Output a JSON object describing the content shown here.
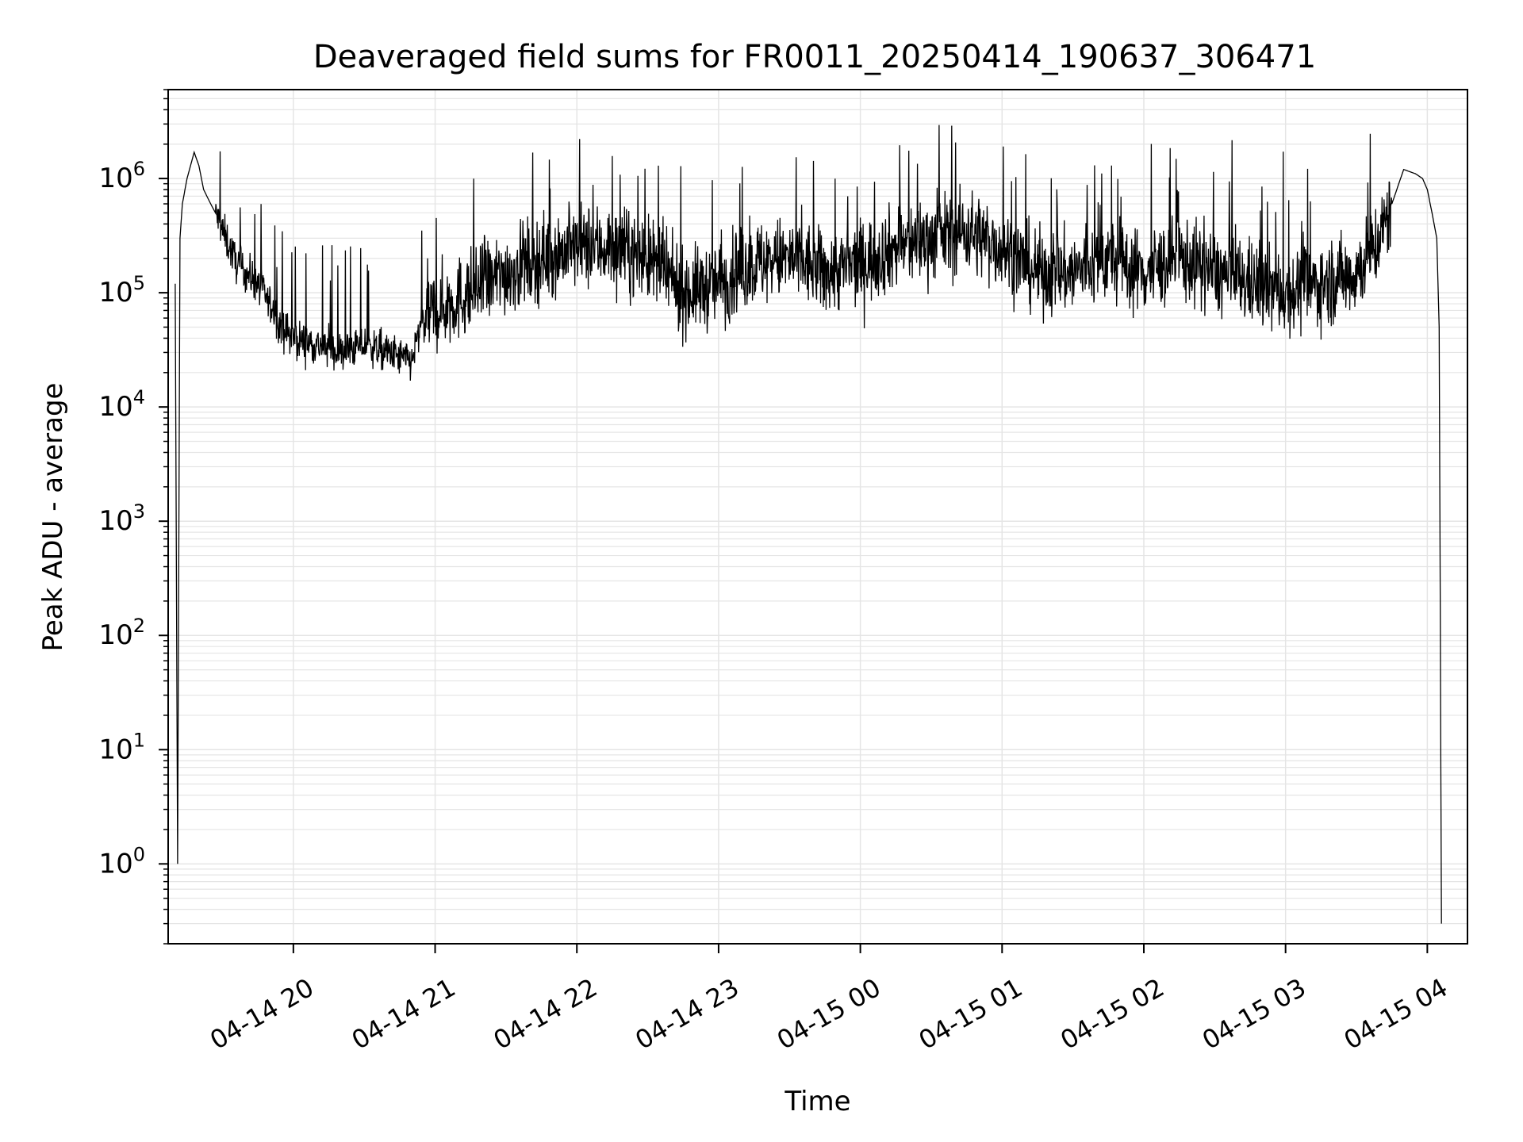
{
  "chart_data": {
    "type": "line",
    "title": "Deaveraged field sums for FR0011_20250414_190637_306471",
    "xlabel": "Time",
    "ylabel": "Peak ADU - average",
    "yscale": "log",
    "ylim": [
      0.2,
      6000000
    ],
    "xlim": [
      "2025-04-14 19:07",
      "2025-04-15 04:17"
    ],
    "grid": true,
    "line_color": "#000000",
    "grid_color": "#e5e5e5",
    "x_ticks": [
      {
        "value": "2025-04-14 20:00",
        "label": "04-14 20"
      },
      {
        "value": "2025-04-14 21:00",
        "label": "04-14 21"
      },
      {
        "value": "2025-04-14 22:00",
        "label": "04-14 22"
      },
      {
        "value": "2025-04-14 23:00",
        "label": "04-14 23"
      },
      {
        "value": "2025-04-15 00:00",
        "label": "04-15 00"
      },
      {
        "value": "2025-04-15 01:00",
        "label": "04-15 01"
      },
      {
        "value": "2025-04-15 02:00",
        "label": "04-15 02"
      },
      {
        "value": "2025-04-15 03:00",
        "label": "04-15 03"
      },
      {
        "value": "2025-04-15 04:00",
        "label": "04-15 04"
      }
    ],
    "y_ticks": [
      {
        "value": 1,
        "base": "10",
        "exp": "0"
      },
      {
        "value": 10,
        "base": "10",
        "exp": "1"
      },
      {
        "value": 100,
        "base": "10",
        "exp": "2"
      },
      {
        "value": 1000,
        "base": "10",
        "exp": "3"
      },
      {
        "value": 10000,
        "base": "10",
        "exp": "4"
      },
      {
        "value": 100000,
        "base": "10",
        "exp": "5"
      },
      {
        "value": 1000000,
        "base": "10",
        "exp": "6"
      }
    ],
    "series": [
      {
        "x": [
          "2025-04-14 19:10",
          "2025-04-14 19:11",
          "2025-04-14 19:12",
          "2025-04-14 19:13",
          "2025-04-14 19:15",
          "2025-04-14 19:18",
          "2025-04-14 19:20",
          "2025-04-14 19:22",
          "2025-04-14 19:25",
          "2025-04-14 19:27",
          "2025-04-14 19:30",
          "2025-04-14 19:33",
          "2025-04-14 19:36",
          "2025-04-14 19:40",
          "2025-04-14 19:45",
          "2025-04-14 19:50",
          "2025-04-14 19:55",
          "2025-04-14 20:00",
          "2025-04-14 20:10",
          "2025-04-14 20:20",
          "2025-04-14 20:30",
          "2025-04-14 20:40",
          "2025-04-14 20:50",
          "2025-04-14 20:55",
          "2025-04-14 21:00",
          "2025-04-14 21:15",
          "2025-04-14 21:30",
          "2025-04-14 21:45",
          "2025-04-14 22:00",
          "2025-04-14 22:15",
          "2025-04-14 22:30",
          "2025-04-14 22:45",
          "2025-04-14 23:00",
          "2025-04-14 23:15",
          "2025-04-14 23:30",
          "2025-04-14 23:45",
          "2025-04-15 00:00",
          "2025-04-15 00:15",
          "2025-04-15 00:30",
          "2025-04-15 00:45",
          "2025-04-15 01:00",
          "2025-04-15 01:15",
          "2025-04-15 01:30",
          "2025-04-15 01:45",
          "2025-04-15 02:00",
          "2025-04-15 02:15",
          "2025-04-15 02:30",
          "2025-04-15 02:45",
          "2025-04-15 03:00",
          "2025-04-15 03:15",
          "2025-04-15 03:30",
          "2025-04-15 03:40",
          "2025-04-15 03:45",
          "2025-04-15 03:50",
          "2025-04-15 03:55",
          "2025-04-15 03:58",
          "2025-04-15 04:00",
          "2025-04-15 04:02",
          "2025-04-15 04:04",
          "2025-04-15 04:05",
          "2025-04-15 04:06"
        ],
        "values": [
          120000,
          1,
          300000,
          600000,
          1000000,
          1700000,
          1300000,
          800000,
          600000,
          500000,
          350000,
          250000,
          180000,
          150000,
          120000,
          80000,
          50000,
          40000,
          35000,
          30000,
          35000,
          30000,
          25000,
          60000,
          70000,
          100000,
          150000,
          200000,
          250000,
          250000,
          200000,
          100000,
          120000,
          180000,
          200000,
          150000,
          180000,
          250000,
          300000,
          350000,
          250000,
          150000,
          150000,
          200000,
          150000,
          200000,
          150000,
          120000,
          100000,
          120000,
          150000,
          300000,
          600000,
          1200000,
          1100000,
          1000000,
          800000,
          500000,
          300000,
          50000,
          0.3
        ]
      }
    ]
  }
}
